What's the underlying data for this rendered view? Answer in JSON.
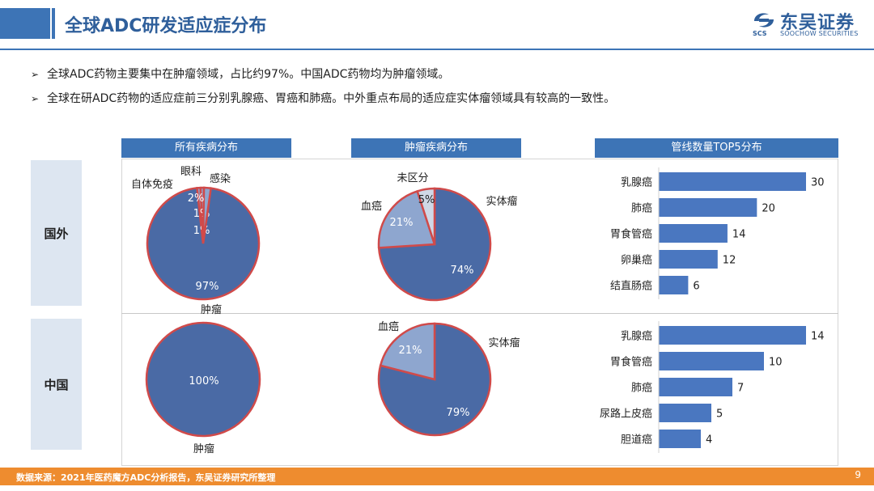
{
  "header": {
    "title": "全球ADC研发适应症分布",
    "logo_cn": "东吴证券",
    "logo_en": "SOOCHOW SECURITIES",
    "logo_abbr": "SCS"
  },
  "bullets": [
    "全球ADC药物主要集中在肿瘤领域，占比约97%。中国ADC药物均为肿瘤领域。",
    "全球在研ADC药物的适应症前三分别乳腺癌、胃癌和肺癌。中外重点布局的适应症实体瘤领域具有较高的一致性。"
  ],
  "columns": {
    "all_diseases": "所有疾病分布",
    "tumor": "肿瘤疾病分布",
    "top5": "管线数量TOP5分布"
  },
  "rows": {
    "foreign": "国外",
    "china": "中国"
  },
  "colors": {
    "primary": "#3d74b6",
    "pie_main": "#4a6aa5",
    "pie_second": "#8ea6cf",
    "pie_third": "#cfd8e6",
    "pie_border": "#d04a4a",
    "bar": "#4a77c0",
    "footer": "#ee8c2f"
  },
  "chart_data": [
    {
      "id": "foreign-all",
      "type": "pie",
      "slices": [
        {
          "name": "肿瘤",
          "value": 97,
          "label": "97%"
        },
        {
          "name": "自体免疫",
          "value": 1,
          "label": "1%"
        },
        {
          "name": "眼科",
          "value": 1,
          "label": "1%"
        },
        {
          "name": "感染",
          "value": 2,
          "label": "2%"
        }
      ]
    },
    {
      "id": "foreign-tumor",
      "type": "pie",
      "slices": [
        {
          "name": "实体瘤",
          "value": 74,
          "label": "74%"
        },
        {
          "name": "血癌",
          "value": 21,
          "label": "21%"
        },
        {
          "name": "未区分",
          "value": 5,
          "label": "5%"
        }
      ]
    },
    {
      "id": "foreign-top5",
      "type": "bar",
      "categories": [
        "乳腺癌",
        "肺癌",
        "胃食管癌",
        "卵巢癌",
        "结直肠癌"
      ],
      "values": [
        30,
        20,
        14,
        12,
        6
      ]
    },
    {
      "id": "china-all",
      "type": "pie",
      "slices": [
        {
          "name": "肿瘤",
          "value": 100,
          "label": "100%"
        }
      ]
    },
    {
      "id": "china-tumor",
      "type": "pie",
      "slices": [
        {
          "name": "实体瘤",
          "value": 79,
          "label": "79%"
        },
        {
          "name": "血癌",
          "value": 21,
          "label": "21%"
        }
      ]
    },
    {
      "id": "china-top5",
      "type": "bar",
      "categories": [
        "乳腺癌",
        "胃食管癌",
        "肺癌",
        "尿路上皮癌",
        "胆道癌"
      ],
      "values": [
        14,
        10,
        7,
        5,
        4
      ]
    }
  ],
  "footer": {
    "source": "数据来源：2021年医药魔方ADC分析报告，东吴证券研究所整理",
    "page": "9"
  }
}
